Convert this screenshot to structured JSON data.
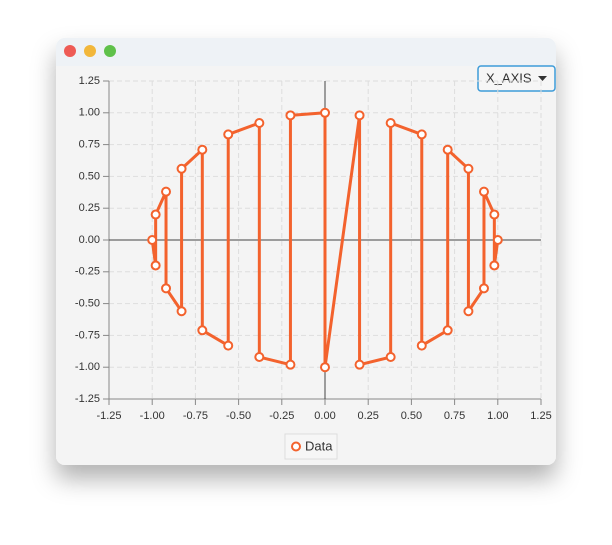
{
  "window": {
    "dropdown": "X_AXIS"
  },
  "chart_data": {
    "type": "line",
    "x": [
      -1.0,
      -0.98,
      -0.98,
      -0.92,
      -0.92,
      -0.83,
      -0.83,
      -0.71,
      -0.71,
      -0.56,
      -0.56,
      -0.38,
      -0.38,
      -0.2,
      -0.2,
      0.0,
      0.0,
      0.2,
      0.2,
      0.38,
      0.38,
      0.56,
      0.56,
      0.71,
      0.71,
      0.83,
      0.83,
      0.92,
      0.92,
      0.98,
      0.98,
      1.0
    ],
    "series": [
      {
        "name": "Data",
        "color": "#f3622d",
        "values": [
          0.0,
          -0.2,
          0.2,
          0.38,
          -0.38,
          -0.56,
          0.56,
          0.71,
          -0.71,
          -0.83,
          0.83,
          0.92,
          -0.92,
          -0.98,
          0.98,
          1.0,
          -1.0,
          0.98,
          -0.98,
          -0.92,
          0.92,
          0.83,
          -0.83,
          -0.71,
          0.71,
          0.56,
          -0.56,
          -0.38,
          0.38,
          0.2,
          -0.2,
          0.0
        ]
      }
    ],
    "xlim": [
      -1.25,
      1.25
    ],
    "ylim": [
      -1.25,
      1.25
    ],
    "xticks": [
      {
        "value": -1.25,
        "label": "-1.25"
      },
      {
        "value": -1.0,
        "label": "-1.00"
      },
      {
        "value": -0.75,
        "label": "-0.75"
      },
      {
        "value": -0.5,
        "label": "-0.50"
      },
      {
        "value": -0.25,
        "label": "-0.25"
      },
      {
        "value": 0,
        "label": "0.00"
      },
      {
        "value": 0.25,
        "label": "0.25"
      },
      {
        "value": 0.5,
        "label": "0.50"
      },
      {
        "value": 0.75,
        "label": "0.75"
      },
      {
        "value": 1.0,
        "label": "1.00"
      },
      {
        "value": 1.25,
        "label": "1.25"
      }
    ],
    "yticks": [
      {
        "value": -1.25,
        "label": "-1.25"
      },
      {
        "value": -1.0,
        "label": "-1.00"
      },
      {
        "value": -0.75,
        "label": "-0.75"
      },
      {
        "value": -0.5,
        "label": "-0.50"
      },
      {
        "value": -0.25,
        "label": "-0.25"
      },
      {
        "value": 0,
        "label": "0.00"
      },
      {
        "value": 0.25,
        "label": "0.25"
      },
      {
        "value": 0.5,
        "label": "0.50"
      },
      {
        "value": 0.75,
        "label": "0.75"
      },
      {
        "value": 1.0,
        "label": "1.00"
      },
      {
        "value": 1.25,
        "label": "1.25"
      }
    ],
    "grid": true,
    "legend": "bottom"
  }
}
